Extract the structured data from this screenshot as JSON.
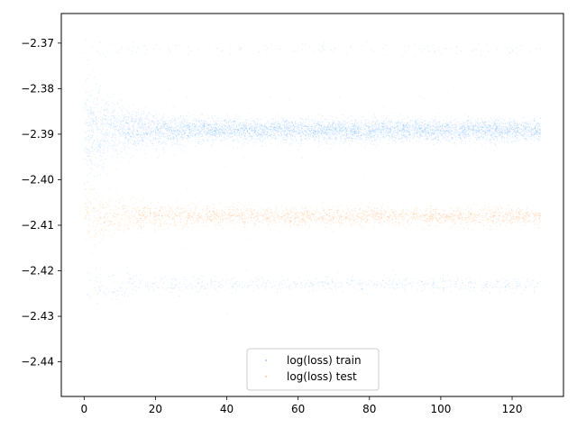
{
  "chart_data": {
    "type": "scatter",
    "title": "",
    "xlabel": "",
    "ylabel": "",
    "xlim": [
      -6.4,
      134.4
    ],
    "ylim": [
      -2.4476,
      -2.3635
    ],
    "x_ticks": [
      0,
      20,
      40,
      60,
      80,
      100,
      120
    ],
    "y_ticks": [
      -2.37,
      -2.38,
      -2.39,
      -2.4,
      -2.41,
      -2.42,
      -2.43,
      -2.44
    ],
    "grid": false,
    "legend": {
      "location": "lower center"
    },
    "series": [
      {
        "name": "log(loss) train",
        "color": "#0a7cff",
        "marker_alpha": 0.12,
        "bands": [
          {
            "center": -2.3891,
            "spread_start": 0.0045,
            "spread_end": 0.0012,
            "density": "very high"
          },
          {
            "center": -2.423,
            "spread_start": 0.002,
            "spread_end": 0.0008,
            "density": "sparse"
          },
          {
            "center": -2.3712,
            "spread_start": 0.0008,
            "spread_end": 0.0006,
            "density": "very sparse"
          }
        ],
        "x_range": [
          0,
          128
        ]
      },
      {
        "name": "log(loss) test",
        "color": "#ff7f0e",
        "marker_alpha": 0.15,
        "bands": [
          {
            "center": -2.408,
            "spread_start": 0.0025,
            "spread_end": 0.001,
            "density": "high"
          }
        ],
        "x_range": [
          0,
          128
        ]
      }
    ]
  }
}
